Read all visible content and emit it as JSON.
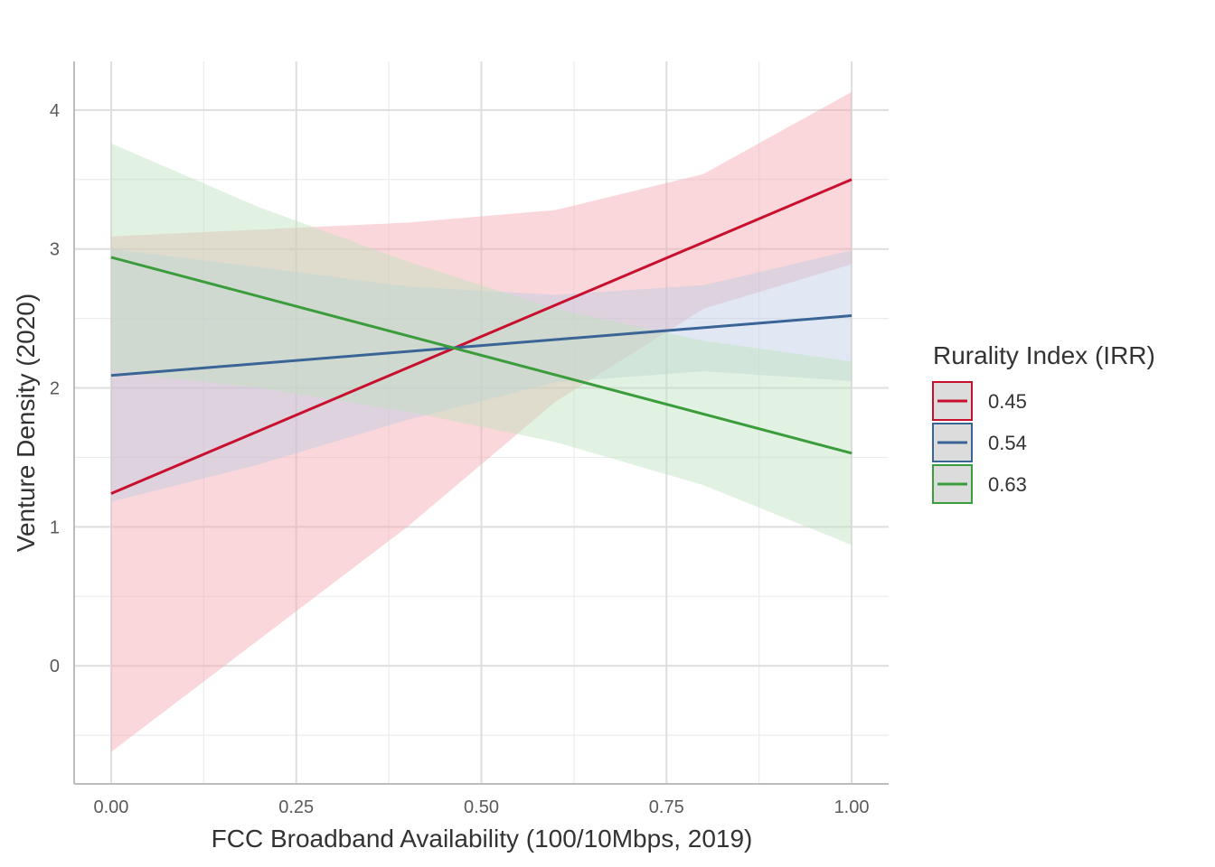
{
  "chart_data": {
    "type": "line",
    "title": "",
    "xlabel": "FCC Broadband Availability (100/10Mbps, 2019)",
    "ylabel": "Venture Density (2020)",
    "xlim": [
      -0.05,
      1.05
    ],
    "ylim": [
      -0.85,
      4.35
    ],
    "x_ticks": [
      0.0,
      0.25,
      0.5,
      0.75,
      1.0
    ],
    "x_tick_labels": [
      "0.00",
      "0.25",
      "0.50",
      "0.75",
      "1.00"
    ],
    "y_ticks": [
      0,
      1,
      2,
      3,
      4
    ],
    "y_tick_labels": [
      "0",
      "1",
      "2",
      "3",
      "4"
    ],
    "grid": true,
    "legend": {
      "title": "Rurality Index (IRR)",
      "position": "right"
    },
    "series": [
      {
        "name": "0.45",
        "color": "#C8102E",
        "fill_color": "#F4A6B0",
        "line": [
          [
            0.0,
            1.24
          ],
          [
            1.0,
            3.5
          ]
        ],
        "ribbon_upper": [
          [
            0.0,
            3.09
          ],
          [
            0.2,
            3.14
          ],
          [
            0.4,
            3.19
          ],
          [
            0.6,
            3.28
          ],
          [
            0.8,
            3.54
          ],
          [
            1.0,
            4.13
          ]
        ],
        "ribbon_lower": [
          [
            0.0,
            -0.62
          ],
          [
            0.2,
            0.19
          ],
          [
            0.4,
            1.0
          ],
          [
            0.6,
            1.9
          ],
          [
            0.8,
            2.57
          ],
          [
            1.0,
            2.89
          ]
        ]
      },
      {
        "name": "0.54",
        "color": "#3A6496",
        "fill_color": "#BCCDE4",
        "line": [
          [
            0.0,
            2.09
          ],
          [
            1.0,
            2.52
          ]
        ],
        "ribbon_upper": [
          [
            0.0,
            3.0
          ],
          [
            0.2,
            2.87
          ],
          [
            0.4,
            2.73
          ],
          [
            0.6,
            2.67
          ],
          [
            0.8,
            2.74
          ],
          [
            1.0,
            2.99
          ]
        ],
        "ribbon_lower": [
          [
            0.0,
            1.18
          ],
          [
            0.2,
            1.45
          ],
          [
            0.4,
            1.77
          ],
          [
            0.6,
            2.04
          ],
          [
            0.8,
            2.12
          ],
          [
            1.0,
            2.05
          ]
        ]
      },
      {
        "name": "0.63",
        "color": "#3B9C3B",
        "fill_color": "#BFE2BF",
        "line": [
          [
            0.0,
            2.94
          ],
          [
            1.0,
            1.53
          ]
        ],
        "ribbon_upper": [
          [
            0.0,
            3.76
          ],
          [
            0.2,
            3.3
          ],
          [
            0.4,
            2.91
          ],
          [
            0.6,
            2.57
          ],
          [
            0.8,
            2.34
          ],
          [
            1.0,
            2.19
          ]
        ],
        "ribbon_lower": [
          [
            0.0,
            2.12
          ],
          [
            0.2,
            2.0
          ],
          [
            0.4,
            1.83
          ],
          [
            0.6,
            1.61
          ],
          [
            0.8,
            1.3
          ],
          [
            1.0,
            0.87
          ]
        ]
      }
    ]
  }
}
